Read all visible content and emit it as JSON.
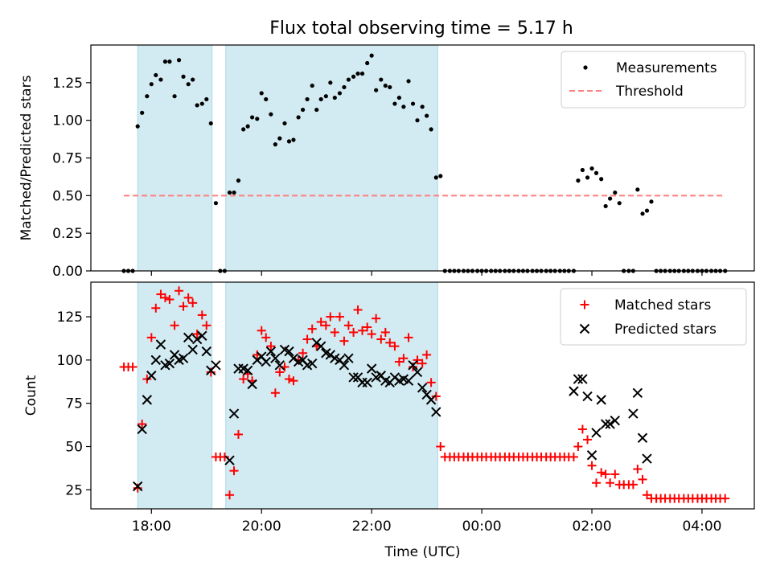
{
  "title": "Flux total observing time = 5.17 h",
  "colors": {
    "measurement": "#000000",
    "threshold": "#ff7f7f",
    "matched": "#ff0000",
    "predicted": "#000000",
    "band": "#add8e6"
  },
  "x_axis": {
    "label": "Time (UTC)",
    "ticks": [
      {
        "t": 18,
        "label": "18:00"
      },
      {
        "t": 20,
        "label": "20:00"
      },
      {
        "t": 22,
        "label": "22:00"
      },
      {
        "t": 24,
        "label": "00:00"
      },
      {
        "t": 26,
        "label": "02:00"
      },
      {
        "t": 28,
        "label": "04:00"
      }
    ]
  },
  "chart_data": [
    {
      "type": "scatter",
      "panel": "top",
      "ylabel": "Matched/Predicted stars",
      "xlim": [
        16.9,
        28.95
      ],
      "ylim": [
        0,
        1.5
      ],
      "yticks": [
        0,
        0.25,
        0.5,
        0.75,
        1.0,
        1.25
      ],
      "ytick_labels": [
        "0.00",
        "0.25",
        "0.50",
        "0.75",
        "1.00",
        "1.25"
      ],
      "bands": [
        [
          17.75,
          19.1
        ],
        [
          19.35,
          23.2
        ]
      ],
      "legend": {
        "position": "top-right",
        "entries": [
          "Measurements",
          "Threshold"
        ]
      },
      "threshold": {
        "name": "Threshold",
        "value": 0.5,
        "x": [
          17.5,
          28.4
        ]
      },
      "series": [
        {
          "name": "Measurements",
          "x": [
            17.5,
            17.58,
            17.66,
            17.75,
            17.83,
            17.92,
            18.0,
            18.08,
            18.17,
            18.25,
            18.33,
            18.42,
            18.5,
            18.58,
            18.67,
            18.75,
            18.83,
            18.92,
            19.0,
            19.08,
            19.17,
            19.25,
            19.33,
            19.42,
            19.5,
            19.58,
            19.67,
            19.75,
            19.83,
            19.92,
            20.0,
            20.08,
            20.17,
            20.25,
            20.33,
            20.42,
            20.5,
            20.58,
            20.67,
            20.75,
            20.83,
            20.92,
            21.0,
            21.08,
            21.17,
            21.25,
            21.33,
            21.42,
            21.5,
            21.58,
            21.67,
            21.75,
            21.83,
            21.92,
            22.0,
            22.08,
            22.17,
            22.25,
            22.33,
            22.42,
            22.5,
            22.58,
            22.67,
            22.75,
            22.83,
            22.92,
            23.0,
            23.08,
            23.17,
            23.25,
            23.33,
            23.42,
            23.5,
            23.58,
            23.67,
            23.75,
            23.83,
            23.92,
            24.0,
            24.08,
            24.17,
            24.25,
            24.33,
            24.42,
            24.5,
            24.58,
            24.67,
            24.75,
            24.83,
            24.92,
            25.0,
            25.08,
            25.17,
            25.25,
            25.33,
            25.42,
            25.5,
            25.58,
            25.67,
            25.75,
            25.83,
            25.92,
            26.0,
            26.08,
            26.17,
            26.25,
            26.33,
            26.42,
            26.5,
            26.58,
            26.67,
            26.75,
            26.83,
            26.92,
            27.0,
            27.08,
            27.17,
            27.25,
            27.33,
            27.42,
            27.5,
            27.58,
            27.67,
            27.75,
            27.83,
            27.92,
            28.0,
            28.08,
            28.17,
            28.25,
            28.33,
            28.42
          ],
          "y": [
            0,
            0,
            0,
            0.96,
            1.05,
            1.16,
            1.24,
            1.3,
            1.27,
            1.39,
            1.39,
            1.16,
            1.4,
            1.29,
            1.24,
            1.27,
            1.1,
            1.11,
            1.14,
            0.98,
            0.45,
            0,
            0,
            0.52,
            0.52,
            0.6,
            0.94,
            0.96,
            1.02,
            1.01,
            1.18,
            1.14,
            1.04,
            0.84,
            0.88,
            0.98,
            0.86,
            0.87,
            1.02,
            1.07,
            1.14,
            1.23,
            1.07,
            1.14,
            1.16,
            1.25,
            1.15,
            1.18,
            1.22,
            1.27,
            1.29,
            1.31,
            1.31,
            1.38,
            1.43,
            1.2,
            1.27,
            1.23,
            1.22,
            1.11,
            1.15,
            1.09,
            1.26,
            1.11,
            1.0,
            1.09,
            1.03,
            0.94,
            0.62,
            0.63,
            0,
            0,
            0,
            0,
            0,
            0,
            0,
            0,
            0,
            0,
            0,
            0,
            0,
            0,
            0,
            0,
            0,
            0,
            0,
            0,
            0,
            0,
            0,
            0,
            0,
            0,
            0,
            0,
            0,
            0.6,
            0.67,
            0.62,
            0.68,
            0.65,
            0.61,
            0.43,
            0.48,
            0.52,
            0.45,
            0,
            0,
            0,
            0.54,
            0.38,
            0.4,
            0.46,
            0,
            0,
            0,
            0,
            0,
            0,
            0,
            0,
            0,
            0,
            0,
            0,
            0,
            0,
            0,
            0
          ]
        }
      ]
    },
    {
      "type": "scatter",
      "panel": "bottom",
      "xlabel": "Time (UTC)",
      "ylabel": "Count",
      "xlim": [
        16.9,
        28.95
      ],
      "ylim": [
        14,
        145
      ],
      "yticks": [
        25,
        50,
        75,
        100,
        125
      ],
      "ytick_labels": [
        "25",
        "50",
        "75",
        "100",
        "125"
      ],
      "bands": [
        [
          17.75,
          19.1
        ],
        [
          19.35,
          23.2
        ]
      ],
      "legend": {
        "position": "top-right",
        "entries": [
          "Matched stars",
          "Predicted stars"
        ]
      },
      "series": [
        {
          "name": "Matched stars",
          "marker": "plus",
          "x": [
            17.5,
            17.58,
            17.66,
            17.75,
            17.83,
            17.92,
            18.0,
            18.08,
            18.17,
            18.25,
            18.33,
            18.42,
            18.5,
            18.58,
            18.67,
            18.75,
            18.83,
            18.92,
            19.0,
            19.08,
            19.17,
            19.25,
            19.33,
            19.42,
            19.5,
            19.58,
            19.67,
            19.75,
            19.83,
            19.92,
            20.0,
            20.08,
            20.17,
            20.25,
            20.33,
            20.42,
            20.5,
            20.58,
            20.67,
            20.75,
            20.83,
            20.92,
            21.0,
            21.08,
            21.17,
            21.25,
            21.33,
            21.42,
            21.5,
            21.58,
            21.67,
            21.75,
            21.83,
            21.92,
            22.0,
            22.08,
            22.17,
            22.25,
            22.33,
            22.42,
            22.5,
            22.58,
            22.67,
            22.75,
            22.83,
            22.92,
            23.0,
            23.08,
            23.17,
            23.25,
            23.33,
            23.42,
            23.5,
            23.58,
            23.67,
            23.75,
            23.83,
            23.92,
            24.0,
            24.08,
            24.17,
            24.25,
            24.33,
            24.42,
            24.5,
            24.58,
            24.67,
            24.75,
            24.83,
            24.92,
            25.0,
            25.08,
            25.17,
            25.25,
            25.33,
            25.42,
            25.5,
            25.58,
            25.67,
            25.75,
            25.83,
            25.92,
            26.0,
            26.08,
            26.17,
            26.25,
            26.33,
            26.42,
            26.5,
            26.58,
            26.67,
            26.75,
            26.83,
            26.92,
            27.0,
            27.08,
            27.17,
            27.25,
            27.33,
            27.42,
            27.5,
            27.58,
            27.67,
            27.75,
            27.83,
            27.92,
            28.0,
            28.08,
            28.17,
            28.25,
            28.33,
            28.42
          ],
          "y": [
            96,
            96,
            96,
            26,
            63,
            89,
            113,
            130,
            138,
            136,
            135,
            120,
            140,
            131,
            136,
            133,
            115,
            126,
            120,
            93,
            44,
            44,
            44,
            22,
            36,
            57,
            89,
            92,
            88,
            103,
            117,
            113,
            108,
            81,
            93,
            96,
            89,
            88,
            100,
            104,
            112,
            118,
            108,
            122,
            120,
            125,
            116,
            125,
            111,
            120,
            116,
            129,
            117,
            119,
            115,
            124,
            112,
            116,
            110,
            108,
            99,
            101,
            113,
            96,
            100,
            98,
            103,
            87,
            79,
            50,
            44,
            44,
            44,
            44,
            44,
            44,
            44,
            44,
            44,
            44,
            44,
            44,
            44,
            44,
            44,
            44,
            44,
            44,
            44,
            44,
            44,
            44,
            44,
            44,
            44,
            44,
            44,
            44,
            44,
            50,
            60,
            54,
            39,
            29,
            35,
            34,
            29,
            34,
            28,
            28,
            28,
            28,
            37,
            31,
            22,
            20,
            20,
            20,
            20,
            20,
            20,
            20,
            20,
            20,
            20,
            20,
            20,
            20,
            20,
            20,
            20,
            20
          ]
        },
        {
          "name": "Predicted stars",
          "marker": "x",
          "x": [
            17.75,
            17.83,
            17.92,
            18.0,
            18.08,
            18.17,
            18.25,
            18.33,
            18.42,
            18.5,
            18.58,
            18.67,
            18.75,
            18.83,
            18.92,
            19.0,
            19.08,
            19.17,
            19.42,
            19.5,
            19.58,
            19.67,
            19.75,
            19.83,
            19.92,
            20.0,
            20.08,
            20.17,
            20.25,
            20.33,
            20.42,
            20.5,
            20.58,
            20.67,
            20.75,
            20.83,
            20.92,
            21.0,
            21.08,
            21.17,
            21.25,
            21.33,
            21.42,
            21.5,
            21.58,
            21.67,
            21.75,
            21.83,
            21.92,
            22.0,
            22.08,
            22.17,
            22.25,
            22.33,
            22.42,
            22.5,
            22.58,
            22.67,
            22.75,
            22.83,
            22.92,
            23.0,
            23.08,
            23.17,
            25.67,
            25.75,
            25.83,
            25.92,
            26.0,
            26.08,
            26.17,
            26.25,
            26.33,
            26.42,
            26.75,
            26.83,
            26.92,
            27.0
          ],
          "y": [
            27,
            60,
            77,
            91,
            100,
            109,
            97,
            98,
            103,
            100,
            101,
            113,
            106,
            112,
            114,
            105,
            94,
            97,
            42,
            69,
            95,
            95,
            94,
            86,
            100,
            102,
            99,
            105,
            101,
            97,
            106,
            105,
            101,
            99,
            100,
            97,
            98,
            110,
            108,
            104,
            103,
            101,
            100,
            97,
            101,
            90,
            90,
            87,
            87,
            95,
            90,
            91,
            88,
            87,
            90,
            88,
            89,
            88,
            97,
            93,
            84,
            80,
            77,
            70,
            82,
            89,
            89,
            79,
            45,
            58,
            77,
            63,
            63,
            65,
            69,
            81,
            55,
            43
          ]
        }
      ]
    }
  ]
}
